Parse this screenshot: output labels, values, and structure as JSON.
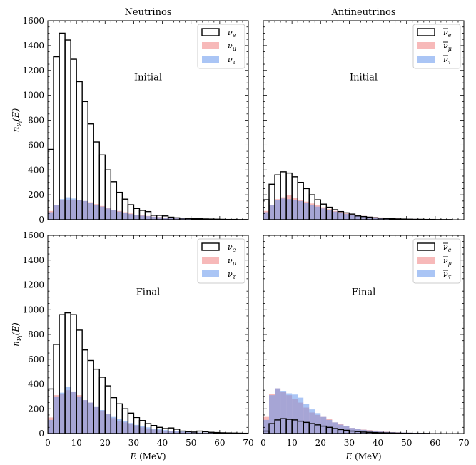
{
  "chart_data": {
    "type": "bar",
    "figure_layout": "2x2 grid, shared axes",
    "ylabel": "n_{ν_i}(E)",
    "xlabel": "E (MeV)",
    "xlim": [
      0,
      70
    ],
    "ylim": [
      0,
      1600
    ],
    "xticks": [
      "0",
      "10",
      "20",
      "30",
      "40",
      "50",
      "60",
      "70"
    ],
    "yticks": [
      "0",
      "200",
      "400",
      "600",
      "800",
      "1000",
      "1200",
      "1400",
      "1600"
    ],
    "bin_width": 2,
    "bin_start": 0,
    "colors": {
      "nu_e": "#000000",
      "nu_mu": "#f08080",
      "nu_tau": "#6495ed"
    },
    "panels": [
      {
        "id": "nu-initial",
        "column_title": "Neutrinos",
        "annotation": "Initial",
        "legend": {
          "position": "top-right",
          "labels": [
            "ν",
            "ν",
            "ν"
          ],
          "subs": [
            "e",
            "μ",
            "τ"
          ],
          "bar": [
            false,
            false,
            false
          ]
        },
        "series": [
          {
            "key": "nu_e",
            "style": "step",
            "values": [
              565,
              1310,
              1500,
              1445,
              1290,
              1110,
              950,
              770,
              625,
              520,
              400,
              305,
              220,
              165,
              120,
              90,
              75,
              65,
              35,
              35,
              30,
              20,
              15,
              12,
              10,
              8,
              8,
              6,
              5,
              4,
              3,
              2,
              2,
              1,
              1
            ]
          },
          {
            "key": "nu_mu",
            "style": "fill",
            "values": [
              70,
              120,
              155,
              160,
              160,
              155,
              150,
              140,
              125,
              110,
              95,
              80,
              70,
              60,
              50,
              40,
              35,
              30,
              25,
              22,
              18,
              15,
              12,
              10,
              9,
              8,
              7,
              6,
              5,
              4,
              3,
              3,
              2,
              2,
              1
            ]
          },
          {
            "key": "nu_tau",
            "style": "fill",
            "values": [
              60,
              115,
              165,
              180,
              170,
              160,
              150,
              135,
              120,
              105,
              90,
              75,
              65,
              55,
              45,
              38,
              32,
              28,
              24,
              20,
              16,
              13,
              11,
              9,
              8,
              7,
              6,
              5,
              4,
              3,
              3,
              2,
              2,
              1,
              1
            ]
          }
        ]
      },
      {
        "id": "anti-initial",
        "column_title": "Antineutrinos",
        "annotation": "Initial",
        "legend": {
          "position": "top-right",
          "labels": [
            "ν",
            "ν",
            "ν"
          ],
          "subs": [
            "e",
            "μ",
            "τ"
          ],
          "bar": [
            true,
            true,
            true
          ]
        },
        "series": [
          {
            "key": "nu_e",
            "style": "step",
            "values": [
              160,
              285,
              360,
              385,
              375,
              345,
              300,
              250,
              200,
              160,
              125,
              100,
              80,
              65,
              55,
              45,
              30,
              25,
              20,
              15,
              12,
              10,
              8,
              6,
              5,
              4,
              3,
              3,
              2,
              2,
              1,
              1,
              1,
              0,
              0
            ]
          },
          {
            "key": "nu_mu",
            "style": "fill",
            "values": [
              70,
              120,
              165,
              180,
              195,
              175,
              160,
              145,
              130,
              115,
              100,
              85,
              70,
              60,
              50,
              42,
              35,
              30,
              25,
              22,
              18,
              15,
              12,
              10,
              8,
              7,
              6,
              5,
              4,
              3,
              3,
              2,
              2,
              1,
              1
            ]
          },
          {
            "key": "nu_tau",
            "style": "fill",
            "values": [
              60,
              115,
              160,
              170,
              165,
              160,
              150,
              135,
              120,
              105,
              90,
              80,
              65,
              55,
              45,
              38,
              32,
              28,
              24,
              20,
              16,
              13,
              11,
              9,
              8,
              7,
              6,
              5,
              4,
              3,
              3,
              2,
              2,
              1,
              1
            ]
          }
        ]
      },
      {
        "id": "nu-final",
        "column_title": "",
        "annotation": "Final",
        "legend": {
          "position": "top-right",
          "labels": [
            "ν",
            "ν",
            "ν"
          ],
          "subs": [
            "e",
            "μ",
            "τ"
          ],
          "bar": [
            false,
            false,
            false
          ]
        },
        "series": [
          {
            "key": "nu_e",
            "style": "step",
            "values": [
              360,
              720,
              960,
              975,
              960,
              835,
              675,
              590,
              520,
              455,
              385,
              290,
              240,
              200,
              165,
              130,
              105,
              80,
              65,
              50,
              40,
              45,
              35,
              20,
              15,
              12,
              20,
              15,
              10,
              8,
              6,
              5,
              4,
              3,
              2
            ]
          },
          {
            "key": "nu_mu",
            "style": "fill",
            "values": [
              130,
              310,
              320,
              350,
              335,
              310,
              270,
              250,
              215,
              185,
              155,
              125,
              100,
              90,
              75,
              65,
              50,
              40,
              32,
              28,
              22,
              18,
              15,
              12,
              10,
              9,
              8,
              7,
              6,
              5,
              4,
              3,
              2,
              2,
              1
            ]
          },
          {
            "key": "nu_tau",
            "style": "fill",
            "values": [
              110,
              300,
              330,
              380,
              340,
              300,
              270,
              250,
              220,
              190,
              160,
              140,
              115,
              100,
              85,
              70,
              60,
              50,
              40,
              35,
              28,
              22,
              18,
              15,
              12,
              10,
              9,
              8,
              7,
              6,
              5,
              4,
              3,
              2,
              1
            ]
          }
        ]
      },
      {
        "id": "anti-final",
        "column_title": "",
        "annotation": "Final",
        "legend": {
          "position": "top-right",
          "labels": [
            "ν",
            "ν",
            "ν"
          ],
          "subs": [
            "e",
            "μ",
            "τ"
          ],
          "bar": [
            true,
            true,
            true
          ]
        },
        "series": [
          {
            "key": "nu_e",
            "style": "step",
            "values": [
              20,
              80,
              110,
              120,
              115,
              110,
              100,
              90,
              80,
              70,
              60,
              50,
              40,
              32,
              26,
              20,
              16,
              12,
              10,
              8,
              6,
              5,
              4,
              3,
              2,
              2,
              1,
              1,
              1,
              0,
              0,
              0,
              0,
              0,
              0
            ]
          },
          {
            "key": "nu_mu",
            "style": "fill",
            "values": [
              140,
              320,
              365,
              340,
              310,
              280,
              250,
              210,
              170,
              150,
              140,
              115,
              90,
              75,
              60,
              45,
              38,
              32,
              28,
              24,
              18,
              15,
              12,
              10,
              8,
              7,
              6,
              5,
              4,
              3,
              3,
              2,
              2,
              1,
              1
            ]
          },
          {
            "key": "nu_tau",
            "style": "fill",
            "values": [
              110,
              310,
              365,
              345,
              325,
              315,
              290,
              240,
              195,
              165,
              140,
              110,
              90,
              72,
              58,
              45,
              36,
              30,
              25,
              20,
              16,
              13,
              11,
              9,
              8,
              7,
              6,
              5,
              4,
              3,
              3,
              2,
              2,
              1,
              1
            ]
          }
        ]
      }
    ]
  }
}
